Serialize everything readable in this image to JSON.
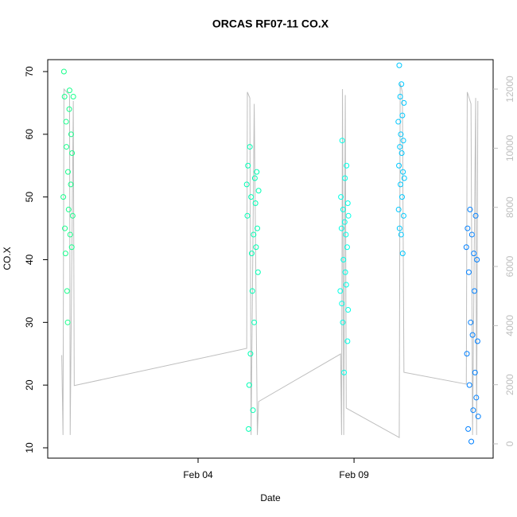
{
  "chart_data": {
    "type": "scatter",
    "title": "ORCAS RF07-11 CO.X",
    "x_label": "Date",
    "y_label": "CO.X",
    "xlim": [
      -0.82,
      13.46
    ],
    "xticks": [
      {
        "value": 4,
        "label": "Feb 04"
      },
      {
        "value": 9,
        "label": "Feb 09"
      }
    ],
    "ylim": [
      8.35,
      71.9
    ],
    "yticks": [
      10,
      20,
      30,
      40,
      50,
      60,
      70
    ],
    "y2lim": [
      -484,
      12996
    ],
    "y2ticks": [
      0,
      2000,
      4000,
      6000,
      8000,
      10000,
      12000
    ],
    "grid": false,
    "series": [
      {
        "color": "#17ff8b",
        "x": [
          -0.32,
          -0.3,
          -0.28,
          -0.27,
          -0.25,
          -0.23,
          -0.22,
          -0.2,
          -0.18,
          -0.17,
          -0.15,
          -0.13,
          -0.12,
          -0.1,
          -0.08,
          -0.07,
          -0.05,
          -0.04,
          -0.02,
          0.0
        ],
        "values": [
          50,
          70,
          66,
          45,
          41,
          62,
          58,
          35,
          30,
          54,
          48,
          64,
          67,
          44,
          52,
          60,
          42,
          57,
          47,
          66
        ]
      },
      {
        "color": "#00ffb4",
        "x": [
          5.56,
          5.58,
          5.6,
          5.62,
          5.64,
          5.66,
          5.68,
          5.7,
          5.72,
          5.74,
          5.76,
          5.78,
          5.8,
          5.82,
          5.84,
          5.86,
          5.88,
          5.9,
          5.92,
          5.94
        ],
        "values": [
          52,
          47,
          55,
          13,
          20,
          58,
          25,
          50,
          41,
          35,
          16,
          44,
          30,
          53,
          49,
          42,
          54,
          45,
          38,
          51
        ]
      },
      {
        "color": "#00ffe6",
        "x": [
          8.56,
          8.58,
          8.6,
          8.61,
          8.62,
          8.64,
          8.65,
          8.66,
          8.68,
          8.7,
          8.71,
          8.72,
          8.74,
          8.75,
          8.76,
          8.78,
          8.79,
          8.8,
          8.81,
          8.82
        ],
        "values": [
          35,
          50,
          45,
          33,
          59,
          30,
          48,
          40,
          22,
          46,
          53,
          38,
          44,
          36,
          55,
          42,
          27,
          49,
          32,
          47
        ]
      },
      {
        "color": "#00c8ff",
        "x": [
          10.42,
          10.43,
          10.44,
          10.45,
          10.46,
          10.47,
          10.48,
          10.49,
          10.5,
          10.51,
          10.52,
          10.53,
          10.54,
          10.55,
          10.56,
          10.57,
          10.58,
          10.59,
          10.6,
          10.61
        ],
        "values": [
          62,
          48,
          55,
          71,
          45,
          58,
          66,
          52,
          60,
          44,
          68,
          57,
          50,
          63,
          41,
          54,
          59,
          47,
          65,
          53
        ]
      },
      {
        "color": "#0080ff",
        "x": [
          12.6,
          12.62,
          12.64,
          12.66,
          12.68,
          12.7,
          12.72,
          12.74,
          12.76,
          12.78,
          12.8,
          12.82,
          12.84,
          12.86,
          12.88,
          12.9,
          12.92,
          12.94,
          12.96,
          12.98
        ],
        "values": [
          42,
          25,
          45,
          13,
          38,
          20,
          48,
          30,
          11,
          44,
          28,
          16,
          41,
          35,
          22,
          47,
          18,
          40,
          27,
          15
        ]
      },
      {
        "color": "#bebebe",
        "axis": "y2",
        "mode": "line",
        "x": [
          -0.37,
          -0.33,
          -0.3,
          -0.12,
          -0.1,
          0.0,
          0.03,
          5.56,
          5.58,
          5.66,
          5.7,
          5.8,
          5.9,
          5.94,
          8.57,
          8.6,
          8.63,
          8.67,
          8.72,
          8.75,
          10.45,
          10.48,
          10.55,
          10.6,
          12.6,
          12.63,
          12.75,
          12.8,
          12.9,
          12.93,
          12.97
        ],
        "values": [
          3000,
          300,
          12000,
          11800,
          300,
          11600,
          1970,
          3230,
          11900,
          11700,
          300,
          11500,
          300,
          1430,
          3040,
          300,
          12000,
          300,
          11800,
          1210,
          215,
          12200,
          11900,
          2420,
          2020,
          11900,
          11500,
          300,
          11700,
          300,
          11600
        ]
      }
    ]
  }
}
